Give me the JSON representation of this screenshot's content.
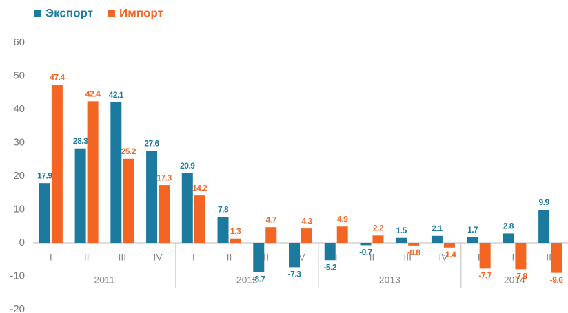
{
  "chart_data": {
    "type": "bar",
    "groups": [
      {
        "name": "2011",
        "categories": [
          "I",
          "II",
          "III",
          "IV"
        ]
      },
      {
        "name": "2012",
        "categories": [
          "I",
          "II",
          "III",
          "IV"
        ]
      },
      {
        "name": "2013",
        "categories": [
          "I",
          "II",
          "III",
          "IV"
        ]
      },
      {
        "name": "2014",
        "categories": [
          "I",
          "II",
          "III"
        ]
      }
    ],
    "series": [
      {
        "name": "Экспорт",
        "color": "#1b7a9e",
        "values": [
          17.9,
          28.3,
          42.1,
          27.6,
          20.9,
          7.8,
          -8.7,
          -7.3,
          -5.2,
          -0.7,
          1.5,
          2.1,
          1.7,
          2.8,
          9.9
        ],
        "value_labels": [
          "17.9",
          "28.3",
          "42.1",
          "27.6",
          "20.9",
          "7.8",
          "-8.7",
          "-7.3",
          "-5.2",
          "-0.7",
          "1.5",
          "2.1",
          "1.7",
          "2.8",
          "9.9"
        ]
      },
      {
        "name": "Импорт",
        "color": "#f26522",
        "values": [
          47.4,
          42.4,
          25.2,
          17.3,
          14.2,
          1.3,
          4.7,
          4.3,
          4.9,
          2.2,
          -0.8,
          -1.4,
          -7.7,
          -7.9,
          -9.0
        ],
        "value_labels": [
          "47.4",
          "42.4",
          "25.2",
          "17.3",
          "14.2",
          "1.3",
          "4.7",
          "4.3",
          "4.9",
          "2.2",
          "-0.8",
          "-1.4",
          "-7.7",
          "-7.9",
          "-9.0"
        ]
      }
    ],
    "ylim": [
      -20,
      60
    ],
    "yticks": [
      -20,
      -10,
      0,
      10,
      20,
      30,
      40,
      50,
      60
    ],
    "legend": "top-left"
  }
}
